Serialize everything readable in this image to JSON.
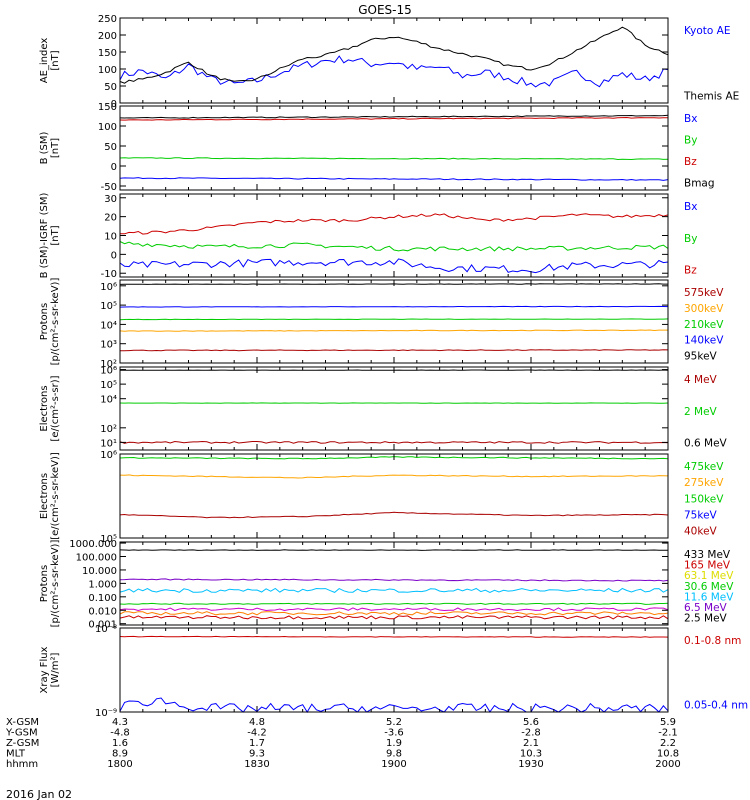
{
  "title": "GOES-15",
  "date_label": "2016 Jan 02",
  "colors": {
    "black": "#000000",
    "blue": "#0000ff",
    "red": "#cc0000",
    "green": "#00cc00",
    "darkred": "#aa0000",
    "orange": "#ffa500",
    "purple": "#7a00c8",
    "cyan": "#00bfff",
    "yellow": "#dddd00",
    "magenta": "#cc00cc",
    "darkorange": "#ff7f00"
  },
  "chart_data": [
    {
      "id": "ae",
      "type": "line",
      "ylabel": "AE_index\n[nT]",
      "ylim": [
        0,
        250
      ],
      "yscale": "linear",
      "yticks": [
        0,
        50,
        100,
        150,
        200,
        250
      ],
      "ytick_labels": [
        "0",
        "50",
        "100",
        "150",
        "200",
        "250"
      ],
      "series": [
        {
          "name": "Kyoto AE",
          "color": "#0000ff",
          "noise": 12,
          "x": [
            1800,
            1805,
            1810,
            1815,
            1820,
            1825,
            1830,
            1835,
            1840,
            1845,
            1850,
            1855,
            1900,
            1905,
            1910,
            1915,
            1920,
            1925,
            1930,
            1935,
            1940,
            1945,
            1950,
            1955,
            2000
          ],
          "y": [
            80,
            95,
            70,
            110,
            70,
            55,
            65,
            90,
            110,
            125,
            130,
            115,
            120,
            100,
            105,
            80,
            90,
            75,
            55,
            60,
            90,
            60,
            85,
            70,
            95
          ]
        },
        {
          "name": "Themis AE",
          "color": "#000000",
          "noise": 4,
          "x": [
            1800,
            1805,
            1810,
            1815,
            1820,
            1825,
            1830,
            1835,
            1840,
            1845,
            1850,
            1855,
            1900,
            1905,
            1910,
            1915,
            1920,
            1925,
            1930,
            1935,
            1940,
            1945,
            1950,
            1955,
            2000
          ],
          "y": [
            60,
            70,
            90,
            120,
            80,
            60,
            70,
            100,
            130,
            140,
            160,
            185,
            195,
            180,
            160,
            145,
            130,
            110,
            100,
            120,
            155,
            190,
            225,
            170,
            145
          ]
        }
      ]
    },
    {
      "id": "b",
      "type": "line",
      "ylabel": "B (SM)\n[nT]",
      "ylim": [
        -60,
        150
      ],
      "yscale": "linear",
      "yticks": [
        -50,
        0,
        50,
        100,
        150
      ],
      "ytick_labels": [
        "-50",
        "0",
        "50",
        "100",
        "150"
      ],
      "series": [
        {
          "name": "Bx",
          "color": "#0000ff",
          "noise": 1.2,
          "x": [
            1800,
            2000
          ],
          "y": [
            -30,
            -35
          ]
        },
        {
          "name": "By",
          "color": "#00cc00",
          "noise": 1,
          "x": [
            1800,
            2000
          ],
          "y": [
            20,
            17
          ]
        },
        {
          "name": "Bz",
          "color": "#cc0000",
          "noise": 1,
          "x": [
            1800,
            2000
          ],
          "y": [
            115,
            121
          ]
        },
        {
          "name": "Bmag",
          "color": "#000000",
          "noise": 1,
          "x": [
            1800,
            2000
          ],
          "y": [
            120,
            126
          ]
        }
      ]
    },
    {
      "id": "bigrf",
      "type": "line",
      "ylabel": "B (SM)-IGRF (SM)\n[nT]",
      "ylim": [
        -12,
        32
      ],
      "yscale": "linear",
      "yticks": [
        -10,
        0,
        10,
        20,
        30
      ],
      "ytick_labels": [
        "-10",
        "0",
        "10",
        "20",
        "30"
      ],
      "series": [
        {
          "name": "Bx",
          "color": "#0000ff",
          "noise": 2,
          "x": [
            1800,
            1820,
            1840,
            1900,
            1910,
            1930,
            1940,
            2000
          ],
          "y": [
            -6,
            -5,
            -4,
            -4,
            -7,
            -8,
            -6,
            -5
          ]
        },
        {
          "name": "By",
          "color": "#00cc00",
          "noise": 1.2,
          "x": [
            1800,
            1820,
            1840,
            1900,
            1930,
            2000
          ],
          "y": [
            6,
            4,
            5,
            3,
            3,
            4
          ]
        },
        {
          "name": "Bz",
          "color": "#cc0000",
          "noise": 0.8,
          "x": [
            1800,
            1810,
            1820,
            1830,
            1840,
            1850,
            1900,
            1910,
            1920,
            1930,
            1940,
            1950,
            2000
          ],
          "y": [
            11,
            12,
            14,
            17,
            18,
            18,
            20,
            21,
            18,
            19,
            21,
            20,
            21
          ]
        }
      ]
    },
    {
      "id": "protons",
      "type": "line",
      "ylabel": "Protons\n[p/(cm²-s-sr-keV)]",
      "ylim": [
        100,
        2000000
      ],
      "yscale": "log",
      "yticks": [
        100,
        1000,
        10000,
        100000,
        1000000
      ],
      "ytick_labels": [
        "10²",
        "10³",
        "10⁴",
        "10⁵",
        "10⁶"
      ],
      "series": [
        {
          "name": "575keV",
          "color": "#aa0000",
          "noise": 0.02,
          "x": [
            1800,
            2000
          ],
          "y": [
            450,
            470
          ]
        },
        {
          "name": "300keV",
          "color": "#ffa500",
          "noise": 0.015,
          "x": [
            1800,
            2000
          ],
          "y": [
            4500,
            5000
          ]
        },
        {
          "name": "210keV",
          "color": "#00cc00",
          "noise": 0.01,
          "x": [
            1800,
            2000
          ],
          "y": [
            18000,
            19000
          ]
        },
        {
          "name": "140keV",
          "color": "#0000ff",
          "noise": 0.01,
          "x": [
            1800,
            2000
          ],
          "y": [
            80000,
            85000
          ]
        },
        {
          "name": "95keV",
          "color": "#000000",
          "noise": 0.01,
          "x": [
            1800,
            2000
          ],
          "y": [
            1200000,
            1250000
          ]
        }
      ]
    },
    {
      "id": "electrons_hi",
      "type": "line",
      "ylabel": "Electrons\n[e/(cm²-s-sr)]",
      "ylim": [
        3,
        1500000
      ],
      "yscale": "log",
      "yticks": [
        10,
        100,
        10000,
        100000,
        1000000
      ],
      "ytick_labels": [
        "10¹",
        "10²",
        "10⁴",
        "10⁵",
        "10⁶"
      ],
      "series": [
        {
          "name": "4 MeV",
          "color": "#aa0000",
          "noise": 0.06,
          "x": [
            1800,
            2000
          ],
          "y": [
            10,
            10
          ]
        },
        {
          "name": "2 MeV",
          "color": "#00cc00",
          "noise": 0.01,
          "x": [
            1800,
            2000
          ],
          "y": [
            5000,
            5000
          ]
        },
        {
          "name": "0.6 MeV",
          "color": "#000000",
          "noise": 0.01,
          "x": [
            1800,
            2000
          ],
          "y": [
            900000,
            920000
          ]
        }
      ]
    },
    {
      "id": "electrons_lo",
      "type": "line",
      "ylabel": "Electrons\n[e/(cm²-s-sr-keV)]",
      "ylim": [
        100000,
        1000000
      ],
      "yscale": "log",
      "yticks": [
        100000,
        1000000
      ],
      "ytick_labels": [
        "10⁵",
        "10⁶"
      ],
      "series": [
        {
          "name": "475keV",
          "color": "#00cc00",
          "noise": 0.005,
          "x": [
            1800,
            1840,
            1900,
            1930,
            2000
          ],
          "y": [
            900000,
            880000,
            920000,
            900000,
            880000
          ]
        },
        {
          "name": "275keV",
          "color": "#ffa500",
          "noise": 0.005,
          "x": [
            1800,
            1840,
            1900,
            1930,
            2000
          ],
          "y": [
            560000,
            520000,
            560000,
            540000,
            550000
          ]
        },
        {
          "name": "150keV",
          "color": "#00cc00",
          "noise": 0,
          "x": [
            1800,
            2000
          ],
          "y": [
            null,
            null
          ]
        },
        {
          "name": "75keV",
          "color": "#0000ff",
          "noise": 0,
          "x": [
            1800,
            2000
          ],
          "y": [
            null,
            null
          ]
        },
        {
          "name": "40keV",
          "color": "#aa0000",
          "noise": 0.005,
          "x": [
            1800,
            1820,
            1840,
            1900,
            1930,
            2000
          ],
          "y": [
            190000,
            175000,
            180000,
            200000,
            185000,
            190000
          ]
        }
      ]
    },
    {
      "id": "protons_hi",
      "type": "line",
      "ylabel": "Protons\n[p/(cm²-s-sr-keV)]",
      "ylim": [
        0.0008,
        1200
      ],
      "yscale": "log",
      "yticks": [
        0.001,
        0.01,
        0.1,
        1,
        10,
        100,
        1000
      ],
      "ytick_labels": [
        "0.001",
        "0.010",
        "0.100",
        "1.000",
        "10.000",
        "100.000",
        "1000.000"
      ],
      "series": [
        {
          "name": "433 MeV",
          "color": "#000000",
          "noise": 0.02,
          "x": [
            1800,
            2000
          ],
          "y": [
            300,
            300
          ]
        },
        {
          "name": "165 MeV",
          "color": "#cc0000",
          "noise": 0,
          "x": [
            1800,
            2000
          ],
          "y": [
            null,
            null
          ]
        },
        {
          "name": "63.1 MeV",
          "color": "#dddd00",
          "noise": 0,
          "x": [
            1800,
            2000
          ],
          "y": [
            null,
            null
          ]
        },
        {
          "name": "30.6 MeV",
          "color": "#00cc00",
          "noise": 0.04,
          "x": [
            1800,
            2000
          ],
          "y": [
            0.03,
            0.03
          ]
        },
        {
          "name": "11.6 MeV",
          "color": "#00bfff",
          "noise": 0.15,
          "x": [
            1800,
            2000
          ],
          "y": [
            0.3,
            0.3
          ]
        },
        {
          "name": "6.5 MeV",
          "color": "#7a00c8",
          "noise": 0.04,
          "x": [
            1800,
            2000
          ],
          "y": [
            2,
            1.6
          ]
        },
        {
          "name": "2.5 MeV",
          "color": "#000000",
          "noise": 0,
          "x": [
            1800,
            2000
          ],
          "y": [
            null,
            null
          ]
        },
        {
          "name": "",
          "color": "#ff7f00",
          "noise": 0.12,
          "x": [
            1800,
            2000
          ],
          "y": [
            0.006,
            0.006
          ]
        },
        {
          "name": "",
          "color": "#cc0000",
          "noise": 0.12,
          "x": [
            1800,
            2000
          ],
          "y": [
            0.003,
            0.003
          ]
        },
        {
          "name": "",
          "color": "#cc00cc",
          "noise": 0.1,
          "x": [
            1800,
            2000
          ],
          "y": [
            0.012,
            0.012
          ]
        }
      ]
    },
    {
      "id": "xray",
      "type": "line",
      "ylabel": "Xray Flux\n[W/m²]",
      "ylim": [
        1e-09,
        1e-08
      ],
      "yscale": "log",
      "yticks": [
        1e-09,
        1e-08
      ],
      "ytick_labels": [
        "10⁻⁹",
        "10⁻⁸"
      ],
      "series": [
        {
          "name": "0.1-0.8 nm",
          "color": "#cc0000",
          "noise": 0.003,
          "x": [
            1800,
            2000
          ],
          "y": [
            7.9e-09,
            7.8e-09
          ]
        },
        {
          "name": "0.05-0.4 nm",
          "color": "#0000ff",
          "noise": 0.06,
          "x": [
            1800,
            1808,
            1812,
            1820,
            2000
          ],
          "y": [
            1.15e-09,
            1.4e-09,
            1.25e-09,
            1.1e-09,
            1.1e-09
          ]
        }
      ]
    }
  ],
  "ephemeris": {
    "x": [
      1800,
      1830,
      1900,
      1930,
      2000
    ],
    "xlim": [
      1800,
      2000
    ],
    "rows": [
      {
        "label": "X-GSM",
        "values": [
          "4.3",
          "4.8",
          "5.2",
          "5.6",
          "5.9"
        ]
      },
      {
        "label": "Y-GSM",
        "values": [
          "-4.8",
          "-4.2",
          "-3.6",
          "-2.8",
          "-2.1"
        ]
      },
      {
        "label": "Z-GSM",
        "values": [
          "1.6",
          "1.7",
          "1.9",
          "2.1",
          "2.2"
        ]
      },
      {
        "label": "MLT",
        "values": [
          "8.9",
          "9.3",
          "9.8",
          "10.3",
          "10.8"
        ]
      },
      {
        "label": "hhmm",
        "values": [
          "1800",
          "1830",
          "1900",
          "1930",
          "2000"
        ]
      }
    ]
  }
}
